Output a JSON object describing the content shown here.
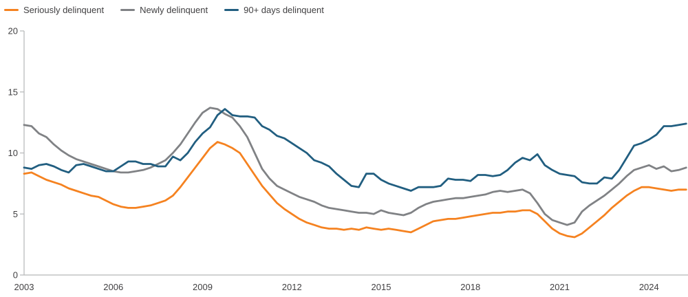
{
  "chart_data": {
    "type": "line",
    "title": "",
    "xlabel": "",
    "ylabel": "",
    "x_start": 2003.0,
    "x_step": 0.25,
    "x_unit": "year (quarterly)",
    "xlim": [
      2003,
      2025.3
    ],
    "ylim": [
      0,
      20
    ],
    "y_ticks": [
      0,
      5,
      10,
      15,
      20
    ],
    "x_ticks": [
      2003,
      2006,
      2009,
      2012,
      2015,
      2018,
      2021,
      2024
    ],
    "grid": false,
    "legend_position": "top-left",
    "axis_color": "#b4b6b8",
    "tick_label_color": "#414042",
    "series": [
      {
        "name": "Seriously delinquent",
        "color": "#f58220",
        "values": [
          8.3,
          8.4,
          8.1,
          7.8,
          7.6,
          7.4,
          7.1,
          6.9,
          6.7,
          6.5,
          6.4,
          6.1,
          5.8,
          5.6,
          5.5,
          5.5,
          5.6,
          5.7,
          5.9,
          6.1,
          6.5,
          7.2,
          8.0,
          8.8,
          9.6,
          10.4,
          10.9,
          10.7,
          10.4,
          10.0,
          9.1,
          8.2,
          7.3,
          6.6,
          5.9,
          5.4,
          5.0,
          4.6,
          4.3,
          4.1,
          3.9,
          3.8,
          3.8,
          3.7,
          3.8,
          3.7,
          3.9,
          3.8,
          3.7,
          3.8,
          3.7,
          3.6,
          3.5,
          3.8,
          4.1,
          4.4,
          4.5,
          4.6,
          4.6,
          4.7,
          4.8,
          4.9,
          5.0,
          5.1,
          5.1,
          5.2,
          5.2,
          5.3,
          5.3,
          5.0,
          4.4,
          3.8,
          3.4,
          3.2,
          3.1,
          3.4,
          3.9,
          4.4,
          4.9,
          5.5,
          6.0,
          6.5,
          6.9,
          7.2,
          7.2,
          7.1,
          7.0,
          6.9,
          7.0,
          7.0
        ]
      },
      {
        "name": "Newly delinquent",
        "color": "#808285",
        "values": [
          12.3,
          12.2,
          11.6,
          11.3,
          10.7,
          10.2,
          9.8,
          9.5,
          9.3,
          9.1,
          8.9,
          8.7,
          8.5,
          8.4,
          8.4,
          8.5,
          8.6,
          8.8,
          9.1,
          9.4,
          10.0,
          10.7,
          11.6,
          12.5,
          13.3,
          13.7,
          13.6,
          13.2,
          12.9,
          12.2,
          11.3,
          10.0,
          8.7,
          7.9,
          7.3,
          7.0,
          6.7,
          6.4,
          6.2,
          6.0,
          5.7,
          5.5,
          5.4,
          5.3,
          5.2,
          5.1,
          5.1,
          5.0,
          5.3,
          5.1,
          5.0,
          4.9,
          5.1,
          5.5,
          5.8,
          6.0,
          6.1,
          6.2,
          6.3,
          6.3,
          6.4,
          6.5,
          6.6,
          6.8,
          6.9,
          6.8,
          6.9,
          7.0,
          6.7,
          5.9,
          5.0,
          4.5,
          4.3,
          4.1,
          4.3,
          5.2,
          5.7,
          6.1,
          6.5,
          7.0,
          7.5,
          8.1,
          8.6,
          8.8,
          9.0,
          8.7,
          8.9,
          8.5,
          8.6,
          8.8
        ]
      },
      {
        "name": "90+ days delinquent",
        "color": "#215e80",
        "values": [
          8.8,
          8.7,
          9.0,
          9.1,
          8.9,
          8.6,
          8.4,
          9.0,
          9.1,
          8.9,
          8.7,
          8.5,
          8.5,
          8.9,
          9.3,
          9.3,
          9.1,
          9.1,
          8.9,
          8.9,
          9.7,
          9.4,
          10.0,
          10.9,
          11.6,
          12.1,
          13.1,
          13.6,
          13.1,
          13.0,
          13.0,
          12.9,
          12.2,
          11.9,
          11.4,
          11.2,
          10.8,
          10.4,
          10.0,
          9.4,
          9.2,
          8.9,
          8.3,
          7.8,
          7.3,
          7.2,
          8.3,
          8.3,
          7.8,
          7.5,
          7.3,
          7.1,
          6.9,
          7.2,
          7.2,
          7.2,
          7.3,
          7.9,
          7.8,
          7.8,
          7.7,
          8.2,
          8.2,
          8.1,
          8.2,
          8.6,
          9.2,
          9.6,
          9.4,
          9.9,
          9.0,
          8.6,
          8.3,
          8.2,
          8.1,
          7.6,
          7.5,
          7.5,
          8.0,
          7.9,
          8.6,
          9.6,
          10.6,
          10.8,
          11.1,
          11.5,
          12.2,
          12.2,
          12.3,
          12.4
        ]
      }
    ]
  }
}
